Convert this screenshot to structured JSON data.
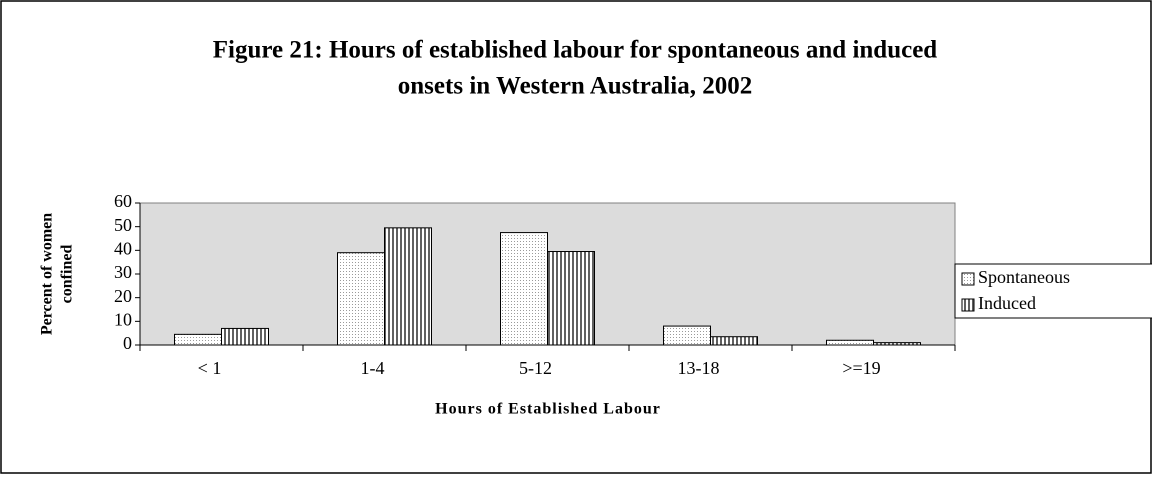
{
  "chart_data": {
    "type": "bar",
    "title": [
      "Figure 21: Hours of established labour for spontaneous and induced",
      "onsets  in Western Australia, 2002"
    ],
    "x_label": "Hours of Established Labour",
    "y_label": [
      "Percent of women",
      "confined"
    ],
    "categories": [
      "< 1",
      "1-4",
      "5-12",
      "13-18",
      ">=19"
    ],
    "series": [
      {
        "name": "Spontaneous",
        "color": "#9a9a9a",
        "values": [
          4.5,
          39,
          47.5,
          8,
          2
        ]
      },
      {
        "name": "Induced",
        "color": "#606060",
        "values": [
          7,
          49.5,
          39.5,
          3.5,
          1
        ]
      }
    ],
    "ylim": [
      0,
      60
    ],
    "yticks": [
      0,
      10,
      20,
      30,
      40,
      50,
      60
    ],
    "grid": false,
    "legend": "right"
  }
}
